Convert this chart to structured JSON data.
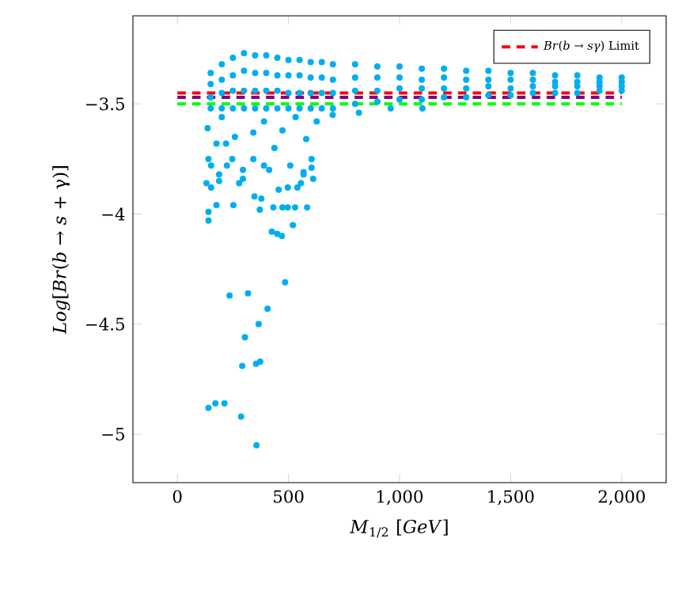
{
  "chart_data": {
    "type": "scatter",
    "xlabel": "*M*$_{1/2}$ [*GeV*]",
    "ylabel": "*Log*[*Br*(*b* → *s* + γ)]",
    "xlim": [
      -200,
      2200
    ],
    "ylim": [
      -5.22,
      -3.1
    ],
    "xticks": [
      0,
      500,
      {
        "value": 1000,
        "label": "1,000"
      },
      {
        "value": 1500,
        "label": "1,500"
      },
      {
        "value": 2000,
        "label": "2,000"
      }
    ],
    "yticks": [
      {
        "value": -5,
        "label": "−5"
      },
      {
        "value": -4.5,
        "label": "−4.5"
      },
      {
        "value": -4,
        "label": "−4"
      },
      {
        "value": -3.5,
        "label": "−3.5"
      }
    ],
    "grid": false,
    "legend": "top right",
    "series": [
      {
        "type": "scatter",
        "color": "#00aeef",
        "marker": "circle",
        "x": [
          140,
          171,
          212,
          287,
          356,
          292,
          354,
          373,
          304,
          366,
          406,
          235,
          318,
          485,
          425,
          449,
          470,
          140,
          140,
          176,
          252,
          347,
          378,
          371,
          432,
          520,
          584,
          131,
          152,
          188,
          188,
          278,
          295,
          456,
          497,
          540,
          556,
          611,
          497,
          473,
          530,
          295,
          152,
          223,
          604,
          568,
          390,
          136,
          176,
          219,
          259,
          342,
          437,
          473,
          580,
          627,
          699,
          817,
          960,
          1103,
          532,
          390,
          200,
          140,
          247,
          342,
          413,
          508,
          604,
          568,
          150,
          200,
          250,
          300,
          350,
          400,
          450,
          500,
          550,
          600,
          650,
          700,
          800,
          900,
          1000,
          1100,
          1200,
          1300,
          1400,
          1500,
          1600,
          1700,
          1800,
          1900,
          2000,
          150,
          200,
          250,
          300,
          350,
          400,
          450,
          500,
          550,
          600,
          650,
          700,
          800,
          900,
          1000,
          1100,
          1200,
          1300,
          1400,
          1500,
          1600,
          1700,
          1800,
          1900,
          2000,
          150,
          200,
          250,
          300,
          350,
          400,
          450,
          500,
          550,
          600,
          650,
          700,
          800,
          900,
          1000,
          1100,
          1200,
          1300,
          1400,
          1500,
          1600,
          1700,
          1800,
          1900,
          2000,
          150,
          200,
          250,
          300,
          350,
          400,
          450,
          500,
          550,
          600,
          650,
          700,
          800,
          900,
          1000,
          1100,
          1200,
          1300,
          1400,
          1500,
          1600,
          1700,
          1800,
          1900,
          2000
        ],
        "values": [
          -4.88,
          -4.86,
          -4.86,
          -4.92,
          -5.05,
          -4.69,
          -4.68,
          -4.67,
          -4.56,
          -4.5,
          -4.43,
          -4.37,
          -4.36,
          -4.31,
          -4.08,
          -4.09,
          -4.1,
          -3.99,
          -4.03,
          -3.96,
          -3.96,
          -3.92,
          -3.93,
          -3.98,
          -3.97,
          -4.05,
          -3.97,
          -3.86,
          -3.88,
          -3.82,
          -3.85,
          -3.86,
          -3.84,
          -3.89,
          -3.88,
          -3.88,
          -3.86,
          -3.84,
          -3.97,
          -3.97,
          -3.97,
          -3.8,
          -3.78,
          -3.78,
          -3.79,
          -3.81,
          -3.78,
          -3.61,
          -3.68,
          -3.68,
          -3.65,
          -3.63,
          -3.7,
          -3.62,
          -3.66,
          -3.58,
          -3.55,
          -3.54,
          -3.52,
          -3.52,
          -3.56,
          -3.58,
          -3.56,
          -3.75,
          -3.75,
          -3.75,
          -3.8,
          -3.78,
          -3.75,
          -3.82,
          -3.36,
          -3.32,
          -3.29,
          -3.27,
          -3.28,
          -3.28,
          -3.29,
          -3.3,
          -3.3,
          -3.31,
          -3.31,
          -3.32,
          -3.32,
          -3.33,
          -3.33,
          -3.34,
          -3.34,
          -3.35,
          -3.35,
          -3.36,
          -3.36,
          -3.37,
          -3.37,
          -3.38,
          -3.38,
          -3.41,
          -3.39,
          -3.37,
          -3.35,
          -3.36,
          -3.36,
          -3.37,
          -3.37,
          -3.37,
          -3.38,
          -3.38,
          -3.39,
          -3.38,
          -3.38,
          -3.38,
          -3.39,
          -3.38,
          -3.39,
          -3.39,
          -3.39,
          -3.39,
          -3.4,
          -3.4,
          -3.4,
          -3.4,
          -3.47,
          -3.45,
          -3.44,
          -3.44,
          -3.44,
          -3.44,
          -3.44,
          -3.45,
          -3.45,
          -3.45,
          -3.45,
          -3.45,
          -3.44,
          -3.44,
          -3.43,
          -3.43,
          -3.43,
          -3.43,
          -3.42,
          -3.43,
          -3.42,
          -3.42,
          -3.42,
          -3.42,
          -3.42,
          -3.52,
          -3.52,
          -3.52,
          -3.52,
          -3.52,
          -3.52,
          -3.52,
          -3.52,
          -3.52,
          -3.52,
          -3.52,
          -3.52,
          -3.5,
          -3.49,
          -3.48,
          -3.48,
          -3.47,
          -3.47,
          -3.46,
          -3.46,
          -3.45,
          -3.45,
          -3.45,
          -3.44,
          -3.44
        ]
      },
      {
        "type": "line",
        "name": "*Br*(*b* → *sγ*) Limit",
        "color": "#ff0000",
        "line_style": "dashed",
        "marker": "none",
        "x": [
          0,
          2000
        ],
        "values": [
          -3.45,
          -3.45
        ]
      },
      {
        "type": "line",
        "color": "#800080",
        "line_style": "dashed",
        "marker": "none",
        "x": [
          0,
          2000
        ],
        "values": [
          -3.47,
          -3.47
        ]
      },
      {
        "type": "line",
        "color": "#00ff00",
        "line_style": "dashed",
        "marker": "none",
        "x": [
          0,
          2000
        ],
        "values": [
          -3.5,
          -3.5
        ]
      }
    ]
  }
}
